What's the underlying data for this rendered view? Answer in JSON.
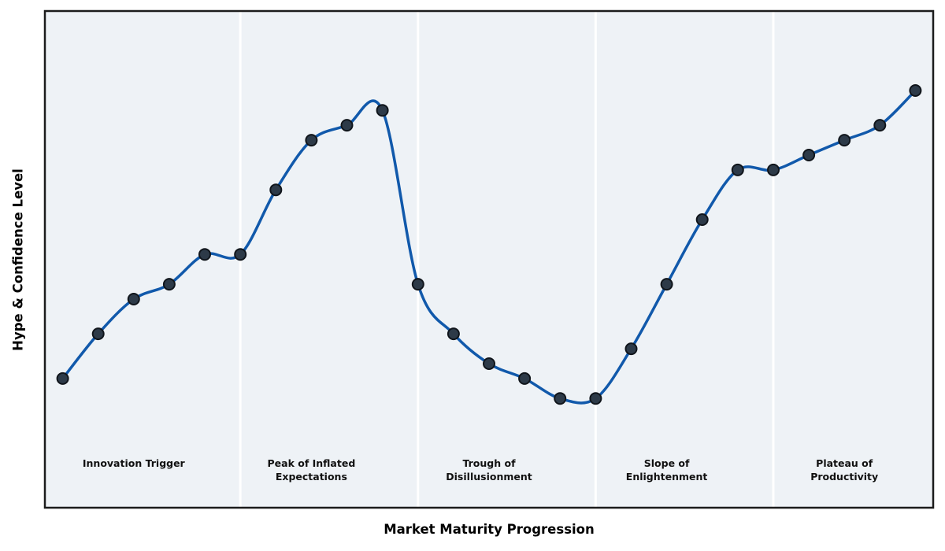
{
  "chart_data": {
    "type": "line",
    "title": "",
    "xlabel": "Market Maturity Progression",
    "ylabel": "Hype & Confidence Level",
    "x": [
      0,
      1,
      2,
      3,
      4,
      5,
      6,
      7,
      8,
      9,
      10,
      11,
      12,
      13,
      14,
      15,
      16,
      17,
      18,
      19,
      20,
      21,
      22,
      23,
      24
    ],
    "series": [
      {
        "name": "Hype & Confidence Level",
        "values": [
          26,
          35,
          42,
          45,
          51,
          51,
          64,
          74,
          77,
          80,
          45,
          35,
          29,
          26,
          22,
          22,
          32,
          45,
          58,
          68,
          68,
          71,
          74,
          77,
          84
        ]
      }
    ],
    "xlim": [
      -0.5,
      24.5
    ],
    "ylim": [
      0,
      100
    ],
    "grid": false,
    "legend": "none",
    "smooth_spline": true,
    "phase_boundaries_x": [
      5,
      10,
      15,
      20
    ],
    "phases": [
      {
        "label": "Innovation Trigger",
        "center_x": 2
      },
      {
        "label": "Peak of Inflated\nExpectations",
        "center_x": 7
      },
      {
        "label": "Trough of\nDisillusionment",
        "center_x": 12
      },
      {
        "label": "Slope of\nEnlightenment",
        "center_x": 17
      },
      {
        "label": "Plateau of\nProductivity",
        "center_x": 22
      }
    ],
    "colors": {
      "line": "#1159ab",
      "marker_fill": "#2d3a48",
      "marker_edge": "#10151b",
      "plot_bg": "#eef2f6",
      "page_bg": "#ffffff",
      "border": "#1c1c1c",
      "separator": "#ffffff",
      "label_text": "#111111"
    }
  }
}
